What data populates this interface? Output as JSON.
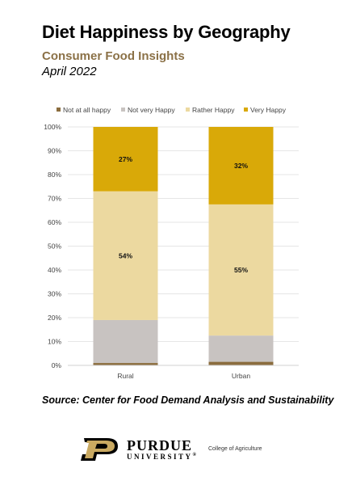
{
  "header": {
    "title": "Diet Happiness by Geography",
    "subtitle": "Consumer Food Insights",
    "date": "April 2022"
  },
  "chart_data": {
    "type": "bar",
    "stacked": true,
    "categories": [
      "Rural",
      "Urban"
    ],
    "series": [
      {
        "name": "Not at all happy",
        "color": "#8b6d3e",
        "values": [
          1,
          1.5
        ],
        "labels": [
          "",
          ""
        ]
      },
      {
        "name": "Not very Happy",
        "color": "#c8c3c1",
        "values": [
          18,
          11
        ],
        "labels": [
          "",
          ""
        ]
      },
      {
        "name": "Rather Happy",
        "color": "#ecd9a0",
        "values": [
          54,
          55
        ],
        "labels": [
          "54%",
          "55%"
        ]
      },
      {
        "name": "Very Happy",
        "color": "#d9a908",
        "values": [
          27,
          32.5
        ],
        "labels": [
          "27%",
          "32%"
        ]
      }
    ],
    "yticks": [
      "0%",
      "10%",
      "20%",
      "30%",
      "40%",
      "50%",
      "60%",
      "70%",
      "80%",
      "90%",
      "100%"
    ],
    "ylim": [
      0,
      100
    ],
    "grid": true,
    "legend_position": "top"
  },
  "footer": {
    "source": "Source:  Center for Food Demand Analysis and Sustainability",
    "logo_purdue": "PURDUE",
    "logo_university": "UNIVERSITY",
    "logo_registered": "®",
    "college": "College of Agriculture"
  }
}
